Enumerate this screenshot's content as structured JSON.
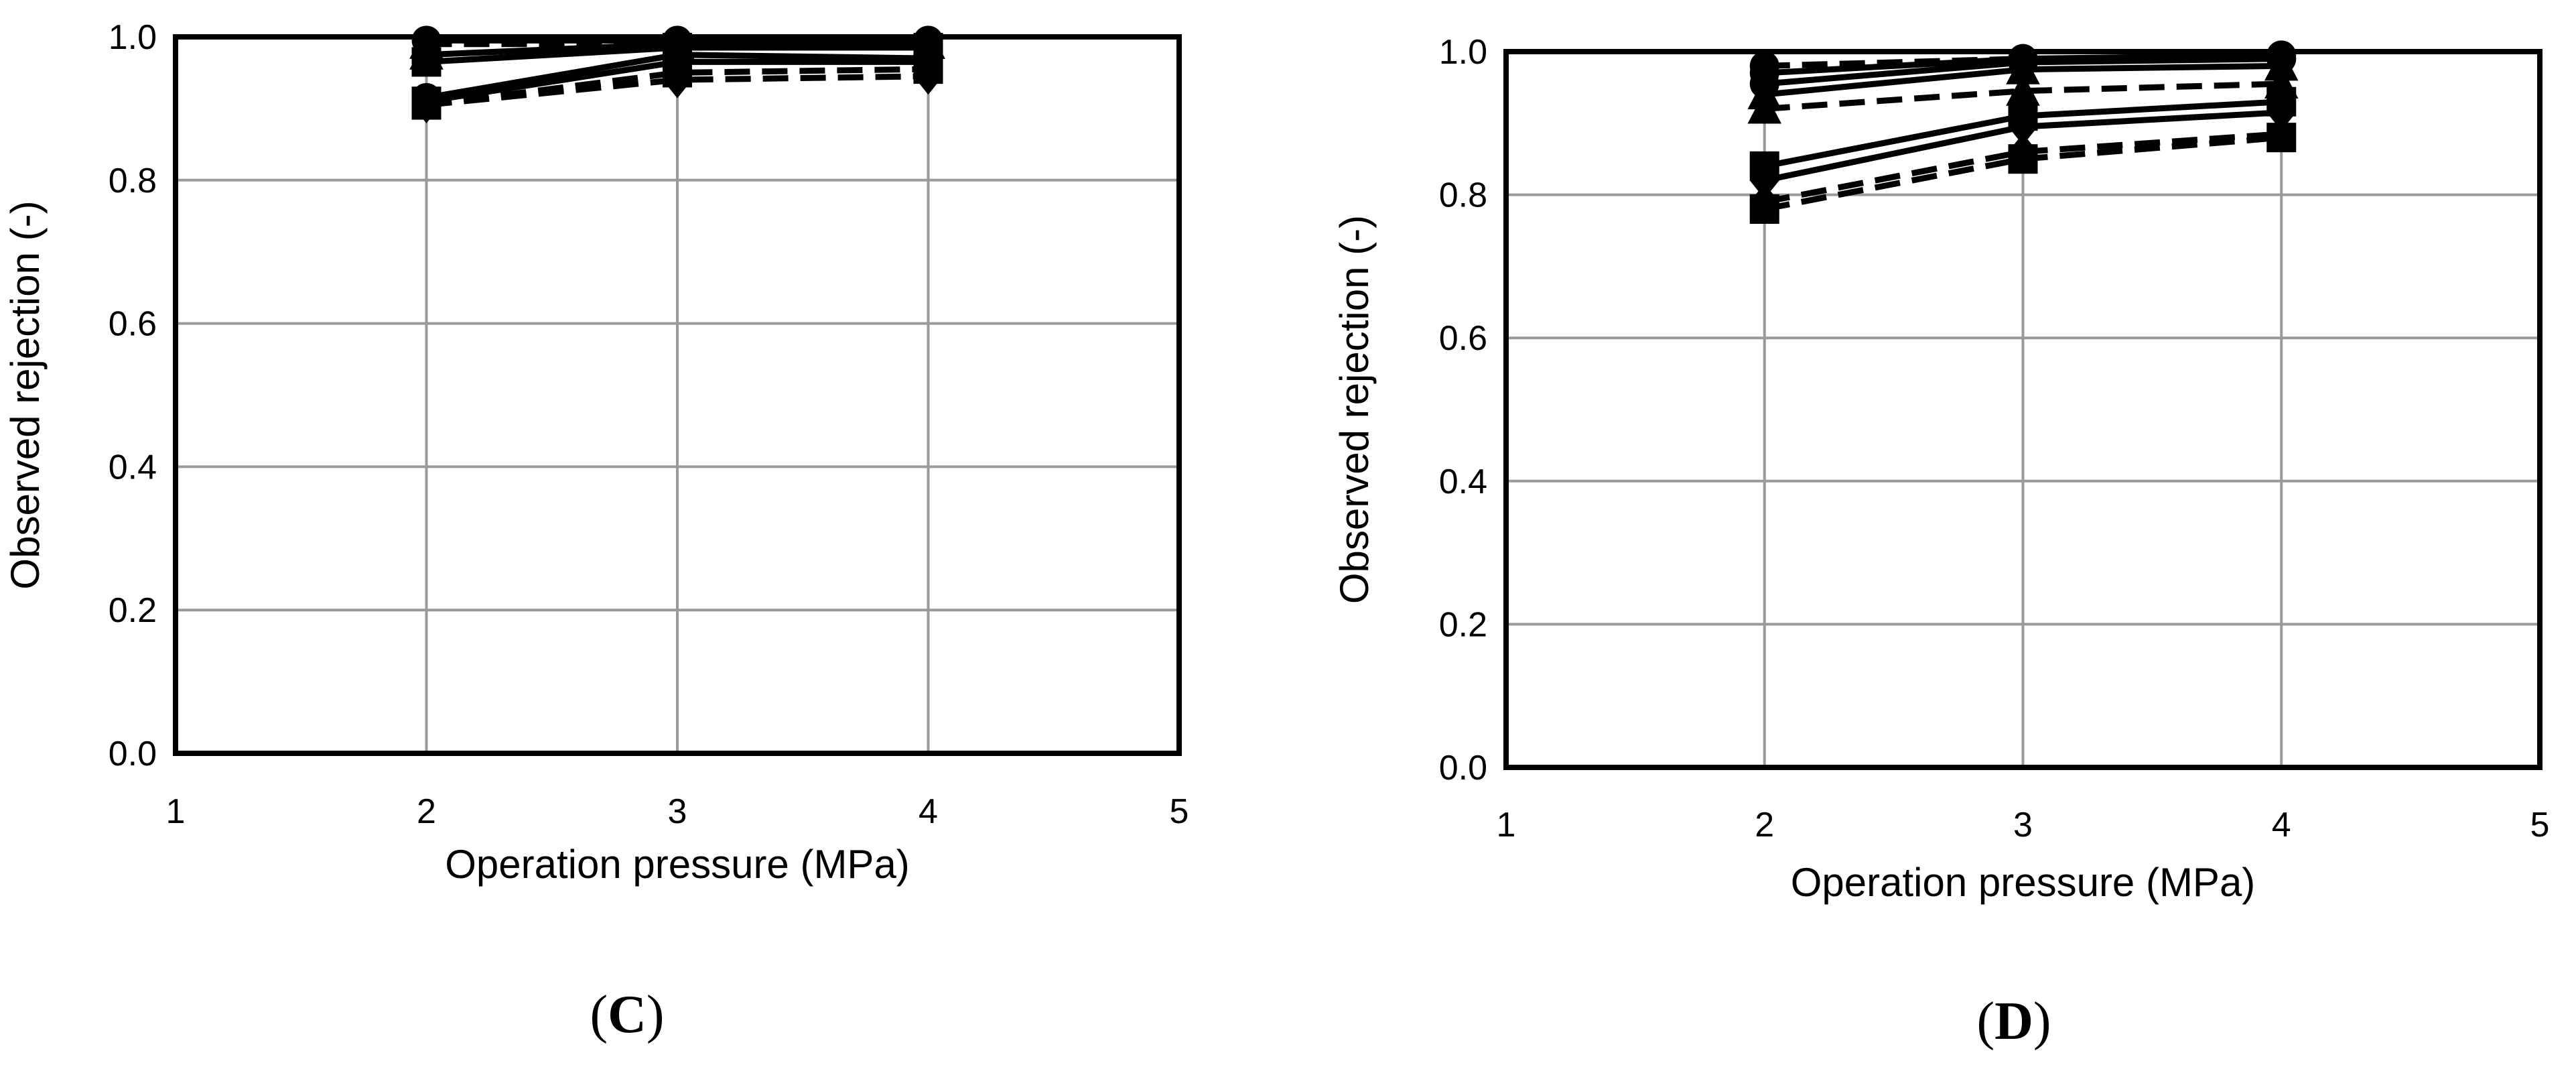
{
  "chart_data": [
    {
      "type": "line",
      "panel_label": "(C)",
      "xlabel": "Operation pressure (MPa)",
      "ylabel": "Observed rejection (-)",
      "xlim": [
        1,
        5
      ],
      "ylim": [
        0.0,
        1.0
      ],
      "x_ticks": [
        "1",
        "2",
        "3",
        "4",
        "5"
      ],
      "y_ticks": [
        "0.0",
        "0.2",
        "0.4",
        "0.6",
        "0.8",
        "1.0"
      ],
      "grid": true,
      "x": [
        2,
        3,
        4
      ],
      "series": [
        {
          "style": "solid",
          "marker": "circle",
          "values": [
            0.995,
            0.995,
            0.995
          ]
        },
        {
          "style": "dashed",
          "marker": "triangle",
          "values": [
            0.99,
            0.99,
            0.99
          ]
        },
        {
          "style": "solid",
          "marker": "triangle",
          "values": [
            0.975,
            0.99,
            0.99
          ]
        },
        {
          "style": "solid",
          "marker": "square",
          "values": [
            0.965,
            0.985,
            0.985
          ]
        },
        {
          "style": "solid",
          "marker": "circle",
          "values": [
            0.915,
            0.975,
            0.97
          ]
        },
        {
          "style": "solid",
          "marker": "square",
          "values": [
            0.91,
            0.965,
            0.965
          ]
        },
        {
          "style": "dashed",
          "marker": "square",
          "values": [
            0.905,
            0.95,
            0.955
          ]
        },
        {
          "style": "dashed",
          "marker": "diamond",
          "values": [
            0.905,
            0.94,
            0.945
          ]
        }
      ]
    },
    {
      "type": "line",
      "panel_label": "(D)",
      "xlabel": "Operation pressure (MPa)",
      "ylabel": "Observed rejection (-)",
      "xlim": [
        1,
        5
      ],
      "ylim": [
        0.0,
        1.0
      ],
      "x_ticks": [
        "1",
        "2",
        "3",
        "4",
        "5"
      ],
      "y_ticks": [
        "0.0",
        "0.2",
        "0.4",
        "0.6",
        "0.8",
        "1.0"
      ],
      "grid": true,
      "x": [
        2,
        3,
        4
      ],
      "series": [
        {
          "style": "dashed",
          "marker": "circle",
          "values": [
            0.98,
            0.99,
            0.99
          ]
        },
        {
          "style": "solid",
          "marker": "circle",
          "values": [
            0.97,
            0.99,
            0.995
          ]
        },
        {
          "style": "solid",
          "marker": "circle",
          "values": [
            0.955,
            0.985,
            0.99
          ]
        },
        {
          "style": "solid",
          "marker": "triangle",
          "values": [
            0.94,
            0.975,
            0.98
          ]
        },
        {
          "style": "dashed",
          "marker": "triangle",
          "values": [
            0.92,
            0.945,
            0.955
          ]
        },
        {
          "style": "solid",
          "marker": "square",
          "values": [
            0.84,
            0.91,
            0.93
          ]
        },
        {
          "style": "solid",
          "marker": "diamond",
          "values": [
            0.82,
            0.895,
            0.915
          ]
        },
        {
          "style": "dashed",
          "marker": "diamond",
          "values": [
            0.79,
            0.86,
            0.885
          ]
        },
        {
          "style": "dashed",
          "marker": "square",
          "values": [
            0.78,
            0.85,
            0.88
          ]
        }
      ]
    }
  ]
}
